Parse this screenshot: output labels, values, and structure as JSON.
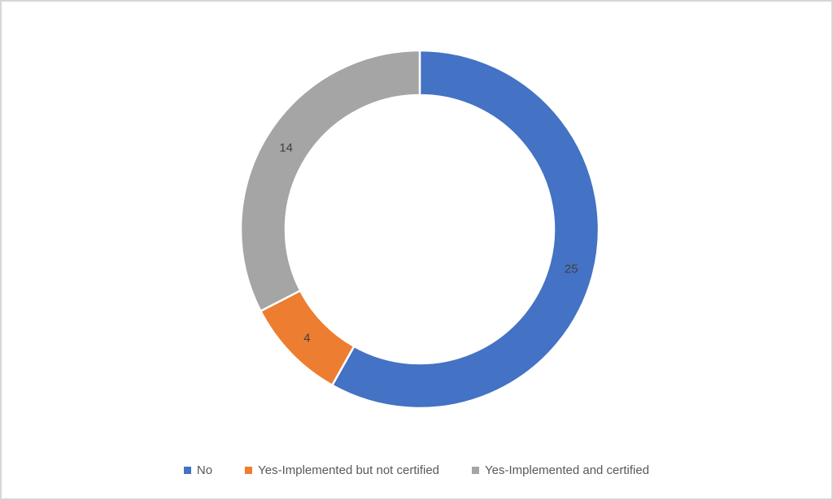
{
  "chart_data": {
    "type": "pie",
    "subtype": "donut",
    "title": "",
    "categories": [
      "No",
      "Yes-Implemented but not certified",
      "Yes-Implemented and certified"
    ],
    "values": [
      25,
      4,
      14
    ],
    "data_labels": [
      "25",
      "4",
      "14"
    ],
    "colors": [
      "#4472C4",
      "#ED7D31",
      "#A5A5A5"
    ],
    "total": 43,
    "start_angle_deg": 0,
    "direction": "clockwise",
    "donut_hole_ratio": 0.75,
    "slice_border_color": "#ffffff",
    "label_color": "#404040",
    "legend_position": "bottom"
  },
  "legend": {
    "items": [
      {
        "label": "No",
        "color": "#4472C4"
      },
      {
        "label": "Yes-Implemented but not certified",
        "color": "#ED7D31"
      },
      {
        "label": "Yes-Implemented and certified",
        "color": "#A5A5A5"
      }
    ]
  },
  "frame": {
    "background_color": "#ffffff",
    "border_color": "#d6d6d6"
  }
}
